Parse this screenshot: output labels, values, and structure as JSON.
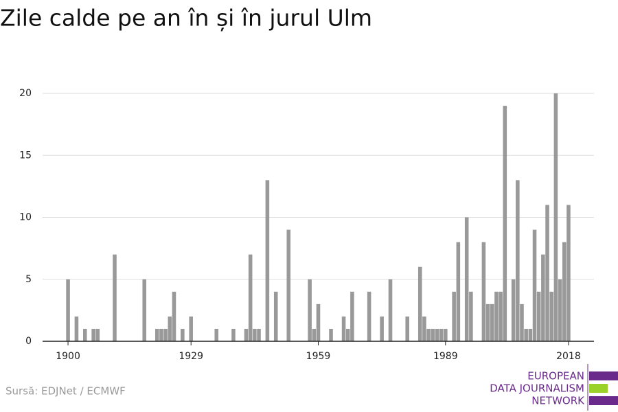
{
  "chart_data": {
    "type": "bar",
    "title": "Zile calde pe an în și în jurul Ulm",
    "source": "Sursă: EDJNet / ECMWF",
    "logo": [
      "EUROPEAN",
      "DATA JOURNALISM",
      "NETWORK"
    ],
    "color": "#999999",
    "x": [
      1900,
      1902,
      1904,
      1906,
      1907,
      1911,
      1918,
      1921,
      1922,
      1923,
      1924,
      1925,
      1927,
      1929,
      1935,
      1939,
      1942,
      1943,
      1944,
      1945,
      1947,
      1949,
      1952,
      1957,
      1958,
      1959,
      1962,
      1965,
      1966,
      1967,
      1971,
      1974,
      1976,
      1980,
      1983,
      1984,
      1985,
      1986,
      1987,
      1988,
      1989,
      1991,
      1992,
      1994,
      1995,
      1998,
      1999,
      2000,
      2001,
      2002,
      2003,
      2005,
      2006,
      2007,
      2008,
      2009,
      2010,
      2011,
      2012,
      2013,
      2014,
      2015,
      2016,
      2017,
      2018
    ],
    "values": [
      5,
      2,
      1,
      1,
      1,
      7,
      5,
      1,
      1,
      1,
      2,
      4,
      1,
      2,
      1,
      1,
      1,
      7,
      1,
      1,
      13,
      4,
      9,
      5,
      1,
      3,
      1,
      2,
      1,
      4,
      4,
      2,
      5,
      2,
      6,
      2,
      1,
      1,
      1,
      1,
      1,
      4,
      8,
      10,
      4,
      8,
      3,
      3,
      4,
      4,
      19,
      5,
      13,
      3,
      1,
      1,
      9,
      4,
      7,
      11,
      4,
      20,
      5,
      8,
      11
    ],
    "xlim": [
      1894,
      2024
    ],
    "xticks": [
      1900,
      1929,
      1959,
      1989,
      2018
    ],
    "ylim": [
      0,
      20
    ],
    "yticks": [
      0,
      5,
      10,
      15,
      20
    ],
    "grid": true
  }
}
